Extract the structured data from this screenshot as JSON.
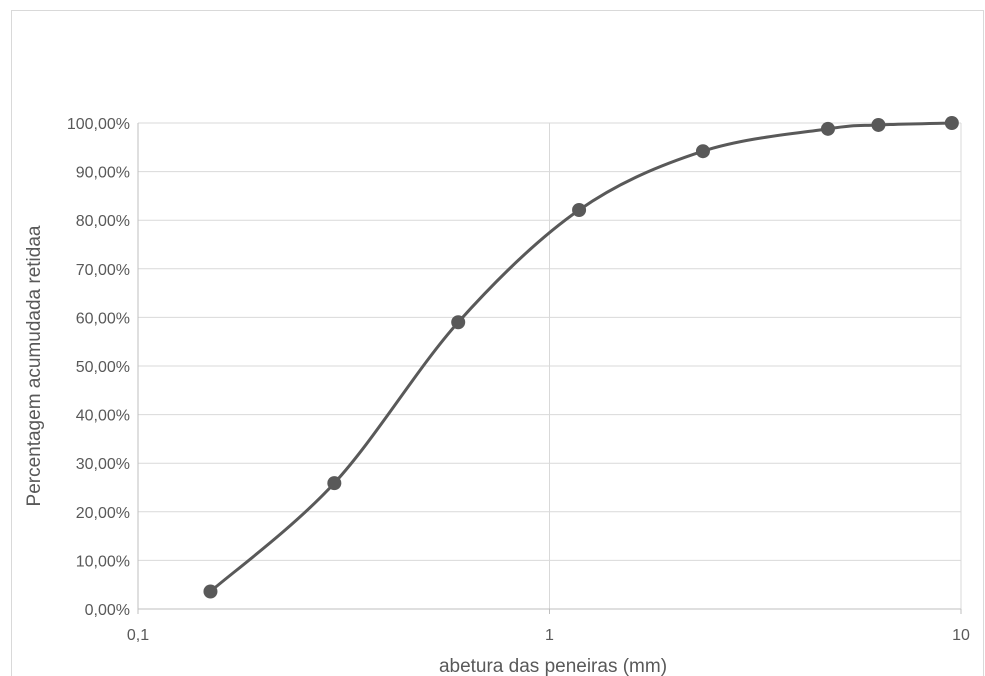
{
  "chart_data": {
    "type": "scatter",
    "title": "",
    "xlabel": "abetura das peneiras (mm)",
    "ylabel": "Percentagem acumudada retidaa",
    "x_scale": "log",
    "xlim": [
      0.1,
      10
    ],
    "ylim": [
      0,
      1
    ],
    "x_ticks": [
      {
        "value": 0.1,
        "label": "0,1"
      },
      {
        "value": 1,
        "label": "1"
      },
      {
        "value": 10,
        "label": "10"
      }
    ],
    "y_ticks": [
      {
        "value": 0.0,
        "label": "0,00%"
      },
      {
        "value": 0.1,
        "label": "10,00%"
      },
      {
        "value": 0.2,
        "label": "20,00%"
      },
      {
        "value": 0.3,
        "label": "30,00%"
      },
      {
        "value": 0.4,
        "label": "40,00%"
      },
      {
        "value": 0.5,
        "label": "50,00%"
      },
      {
        "value": 0.6,
        "label": "60,00%"
      },
      {
        "value": 0.7,
        "label": "70,00%"
      },
      {
        "value": 0.8,
        "label": "80,00%"
      },
      {
        "value": 0.9,
        "label": "90,00%"
      },
      {
        "value": 1.0,
        "label": "100,00%"
      }
    ],
    "grid": true,
    "smooth_line": true,
    "series": [
      {
        "color": "#595959",
        "points": [
          {
            "x": 0.15,
            "y": 0.036
          },
          {
            "x": 0.3,
            "y": 0.259
          },
          {
            "x": 0.6,
            "y": 0.59
          },
          {
            "x": 1.18,
            "y": 0.821
          },
          {
            "x": 2.36,
            "y": 0.942
          },
          {
            "x": 4.75,
            "y": 0.988
          },
          {
            "x": 6.3,
            "y": 0.996
          },
          {
            "x": 9.5,
            "y": 1.0
          }
        ]
      }
    ]
  }
}
